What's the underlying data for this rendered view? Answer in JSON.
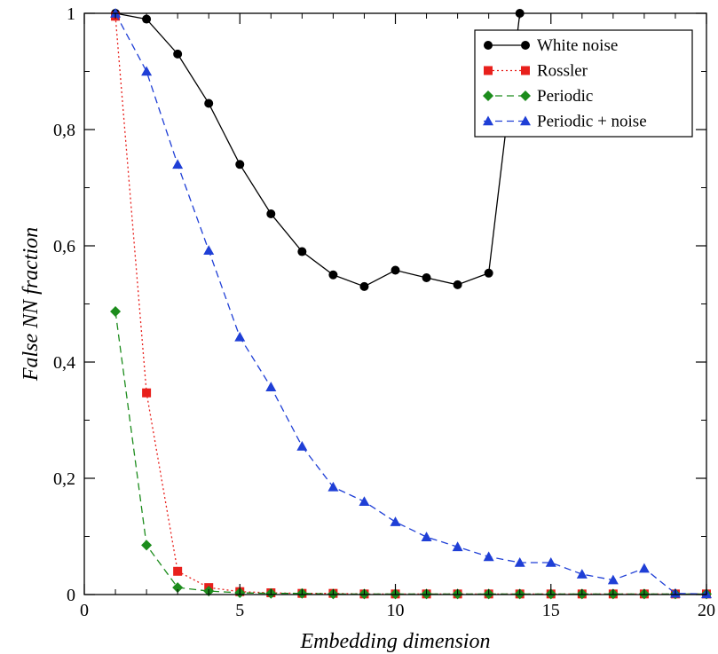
{
  "chart_data": {
    "type": "line",
    "title": "",
    "xlabel": "Embedding dimension",
    "ylabel": "False NN fraction",
    "xlim": [
      0,
      20
    ],
    "ylim": [
      0,
      1
    ],
    "xticks": [
      0,
      5,
      10,
      15,
      20
    ],
    "xtick_labels": [
      "0",
      "5",
      "10",
      "15",
      "20"
    ],
    "yticks": [
      0,
      0.2,
      0.4,
      0.6,
      0.8,
      1
    ],
    "ytick_labels": [
      "0",
      "0,2",
      "0,4",
      "0,6",
      "0,8",
      "1"
    ],
    "grid": false,
    "legend": "top-right",
    "series": [
      {
        "name": "White noise",
        "color": "#000000",
        "marker": "circle",
        "line": "solid",
        "x": [
          1,
          2,
          3,
          4,
          5,
          6,
          7,
          8,
          9,
          10,
          11,
          12,
          13,
          14
        ],
        "y": [
          1.0,
          0.99,
          0.93,
          0.845,
          0.74,
          0.655,
          0.59,
          0.55,
          0.53,
          0.558,
          0.545,
          0.533,
          0.553,
          1.0
        ]
      },
      {
        "name": "Rossler",
        "color": "#e8201c",
        "marker": "square",
        "line": "dotted",
        "x": [
          1,
          2,
          3,
          4,
          5,
          6,
          7,
          8,
          9,
          10,
          11,
          12,
          13,
          14,
          15,
          16,
          17,
          18,
          19,
          20
        ],
        "y": [
          0.995,
          0.347,
          0.04,
          0.012,
          0.005,
          0.003,
          0.002,
          0.002,
          0.001,
          0.001,
          0.001,
          0.001,
          0.001,
          0.001,
          0.001,
          0.001,
          0.001,
          0.001,
          0.001,
          0.001
        ]
      },
      {
        "name": "Periodic",
        "color": "#1c8c1c",
        "marker": "diamond",
        "line": "dashed",
        "x": [
          1,
          2,
          3,
          4,
          5,
          6,
          7,
          8,
          9,
          10,
          11,
          12,
          13,
          14,
          15,
          16,
          17,
          18,
          19,
          20
        ],
        "y": [
          0.487,
          0.085,
          0.012,
          0.006,
          0.003,
          0.002,
          0.002,
          0.001,
          0.001,
          0.001,
          0.001,
          0.001,
          0.001,
          0.001,
          0.001,
          0.001,
          0.001,
          0.001,
          0.001,
          0.001
        ]
      },
      {
        "name": "Periodic + noise",
        "color": "#1f3fd6",
        "marker": "triangle",
        "line": "dashed",
        "x": [
          1,
          2,
          3,
          4,
          5,
          6,
          7,
          8,
          9,
          10,
          11,
          12,
          13,
          14,
          15,
          16,
          17,
          18,
          19,
          20
        ],
        "y": [
          1.0,
          0.9,
          0.74,
          0.592,
          0.443,
          0.357,
          0.255,
          0.185,
          0.16,
          0.125,
          0.099,
          0.082,
          0.065,
          0.055,
          0.055,
          0.035,
          0.025,
          0.045,
          0.002,
          0.001
        ]
      }
    ]
  }
}
